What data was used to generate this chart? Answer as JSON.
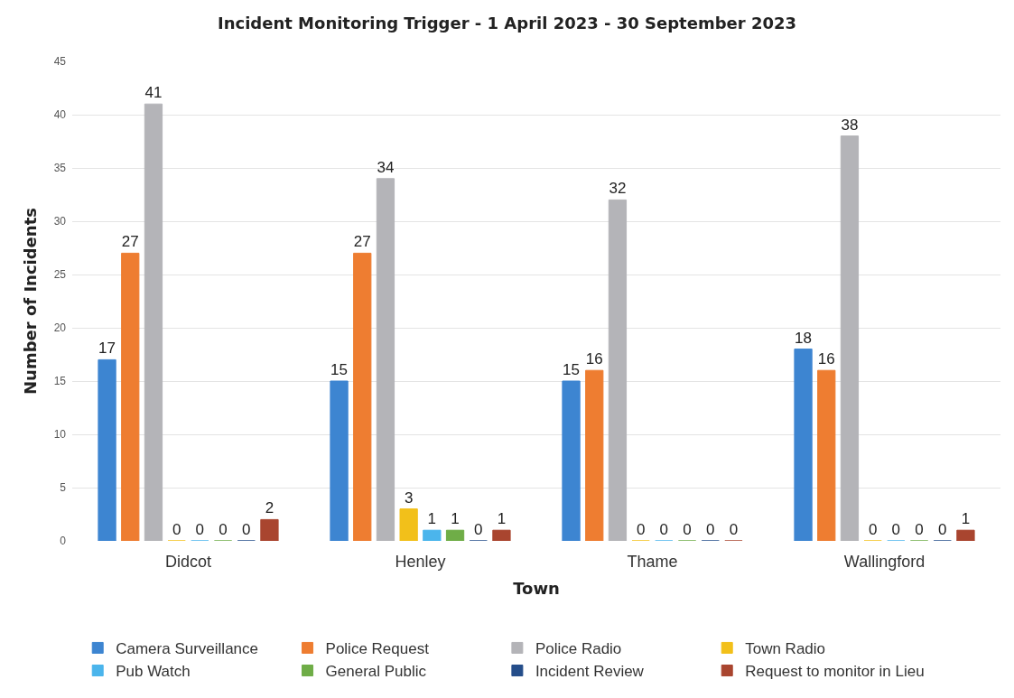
{
  "chart_data": {
    "type": "bar",
    "title": "Incident Monitoring Trigger - 1 April 2023 - 30 September 2023",
    "xlabel": "Town",
    "ylabel": "Number of Incidents",
    "categories": [
      "Didcot",
      "Henley",
      "Thame",
      "Wallingford"
    ],
    "series": [
      {
        "name": "Camera Surveillance",
        "color": "#3d85d1",
        "values": [
          17,
          15,
          15,
          18
        ]
      },
      {
        "name": "Police Request",
        "color": "#ee7d31",
        "values": [
          27,
          27,
          16,
          16
        ]
      },
      {
        "name": "Police Radio",
        "color": "#b4b4b8",
        "values": [
          41,
          34,
          32,
          38
        ]
      },
      {
        "name": "Town Radio",
        "color": "#f2c01a",
        "values": [
          0,
          3,
          0,
          0
        ]
      },
      {
        "name": "Pub Watch",
        "color": "#4bb5ec",
        "values": [
          0,
          1,
          0,
          0
        ]
      },
      {
        "name": "General Public",
        "color": "#6fad47",
        "values": [
          0,
          1,
          0,
          0
        ]
      },
      {
        "name": "Incident Review",
        "color": "#254e8a",
        "values": [
          0,
          0,
          0,
          0
        ]
      },
      {
        "name": "Request to monitor in Lieu",
        "color": "#a9452f",
        "values": [
          2,
          1,
          0,
          1
        ]
      }
    ],
    "ylim": [
      0,
      45
    ],
    "yticks": [
      0,
      5,
      10,
      15,
      20,
      25,
      30,
      35,
      40,
      45
    ],
    "grid": "y",
    "legend": "bottom",
    "data_labels": true
  }
}
